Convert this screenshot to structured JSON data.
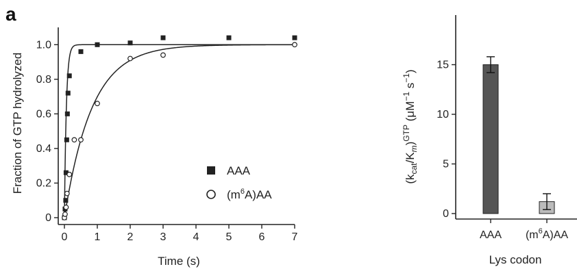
{
  "panel_label": "a",
  "chart_data": [
    {
      "type": "scatter",
      "title": "",
      "xlabel": "Time (s)",
      "ylabel": "Fraction of GTP hydrolyzed",
      "xlim": [
        0,
        7
      ],
      "ylim": [
        0,
        1.1
      ],
      "xticks": [
        "0",
        "1",
        "2",
        "3",
        "4",
        "5",
        "6",
        "7"
      ],
      "yticks": [
        "0",
        "0.2",
        "0.4",
        "0.6",
        "0.8",
        "1.0"
      ],
      "legend_position": "bottom-right",
      "series": [
        {
          "name": "AAA",
          "marker": "filled-square",
          "color": "#222222",
          "points": [
            [
              0,
              0
            ],
            [
              0.02,
              0.05
            ],
            [
              0.04,
              0.1
            ],
            [
              0.05,
              0.26
            ],
            [
              0.07,
              0.45
            ],
            [
              0.09,
              0.6
            ],
            [
              0.11,
              0.72
            ],
            [
              0.15,
              0.82
            ],
            [
              0.5,
              0.96
            ],
            [
              1.0,
              1.0
            ],
            [
              2.0,
              1.01
            ],
            [
              3.0,
              1.04
            ],
            [
              5.0,
              1.04
            ],
            [
              7.0,
              1.04
            ]
          ],
          "fit_rate_per_s": 17
        },
        {
          "name": "(m6A)AA",
          "marker": "open-circle",
          "color": "#222222",
          "points": [
            [
              0,
              0
            ],
            [
              0.02,
              0.02
            ],
            [
              0.05,
              0.06
            ],
            [
              0.08,
              0.14
            ],
            [
              0.15,
              0.25
            ],
            [
              0.3,
              0.45
            ],
            [
              0.5,
              0.45
            ],
            [
              1.0,
              0.66
            ],
            [
              2.0,
              0.92
            ],
            [
              3.0,
              0.94
            ],
            [
              7.0,
              1.0
            ]
          ],
          "fit_rate_per_s": 1.2
        }
      ]
    },
    {
      "type": "bar",
      "title": "",
      "xlabel": "Lys codon",
      "ylabel_parts": [
        "(k",
        "cat",
        "/K",
        "m",
        ")",
        "GTP",
        " (μM",
        "−1",
        " s",
        "−1",
        ")"
      ],
      "categories": [
        "AAA",
        "(m6A)AA"
      ],
      "values": [
        15,
        1.2
      ],
      "errors": [
        0.8,
        0.8
      ],
      "colors": [
        "#555555",
        "#bbbbbb"
      ],
      "ylim": [
        0,
        20
      ],
      "yticks": [
        "0",
        "5",
        "10",
        "15"
      ]
    }
  ]
}
